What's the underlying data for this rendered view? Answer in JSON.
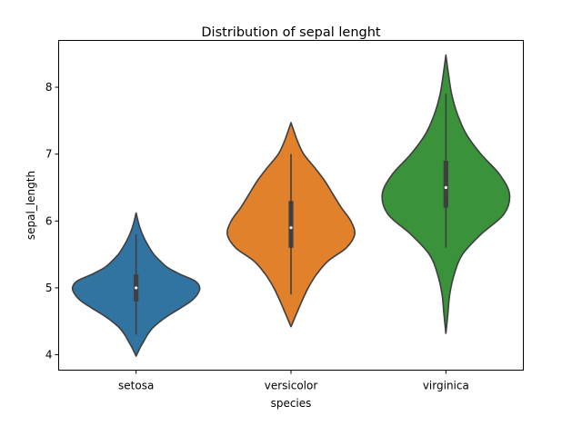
{
  "chart_data": {
    "type": "violin",
    "title": "Distribution of sepal lenght",
    "xlabel": "species",
    "ylabel": "sepal_length",
    "ylim": [
      3.77,
      8.7
    ],
    "yticks": [
      4,
      5,
      6,
      7,
      8
    ],
    "categories": [
      "setosa",
      "versicolor",
      "virginica"
    ],
    "grid": false,
    "legend": "none",
    "series": [
      {
        "category": "setosa",
        "color": "#3274a1",
        "min": 4.3,
        "q1": 4.8,
        "median": 5.0,
        "q3": 5.2,
        "max": 5.8,
        "kde_range": [
          3.98,
          6.12
        ],
        "density": [
          [
            3.98,
            0.0
          ],
          [
            4.1,
            0.06
          ],
          [
            4.2,
            0.12
          ],
          [
            4.3,
            0.18
          ],
          [
            4.4,
            0.26
          ],
          [
            4.5,
            0.38
          ],
          [
            4.6,
            0.53
          ],
          [
            4.7,
            0.7
          ],
          [
            4.8,
            0.86
          ],
          [
            4.9,
            0.96
          ],
          [
            5.0,
            1.0
          ],
          [
            5.1,
            0.93
          ],
          [
            5.2,
            0.7
          ],
          [
            5.3,
            0.5
          ],
          [
            5.4,
            0.38
          ],
          [
            5.5,
            0.28
          ],
          [
            5.6,
            0.21
          ],
          [
            5.7,
            0.15
          ],
          [
            5.8,
            0.1
          ],
          [
            5.9,
            0.06
          ],
          [
            6.0,
            0.03
          ],
          [
            6.12,
            0.0
          ]
        ]
      },
      {
        "category": "versicolor",
        "color": "#e1812c",
        "min": 4.9,
        "q1": 5.6,
        "median": 5.9,
        "q3": 6.3,
        "max": 7.0,
        "kde_range": [
          4.42,
          7.47
        ],
        "density": [
          [
            4.42,
            0.0
          ],
          [
            4.6,
            0.08
          ],
          [
            4.8,
            0.17
          ],
          [
            5.0,
            0.27
          ],
          [
            5.2,
            0.4
          ],
          [
            5.4,
            0.58
          ],
          [
            5.6,
            0.87
          ],
          [
            5.8,
            1.0
          ],
          [
            6.0,
            0.94
          ],
          [
            6.2,
            0.79
          ],
          [
            6.4,
            0.66
          ],
          [
            6.6,
            0.53
          ],
          [
            6.8,
            0.37
          ],
          [
            7.0,
            0.2
          ],
          [
            7.2,
            0.1
          ],
          [
            7.47,
            0.0
          ]
        ]
      },
      {
        "category": "virginica",
        "color": "#3a923a",
        "min": 5.6,
        "q1": 6.2,
        "median": 6.5,
        "q3": 6.9,
        "max": 7.9,
        "kde_range": [
          4.32,
          8.48
        ],
        "density": [
          [
            4.32,
            0.0
          ],
          [
            4.6,
            0.03
          ],
          [
            4.9,
            0.06
          ],
          [
            5.2,
            0.13
          ],
          [
            5.5,
            0.26
          ],
          [
            5.8,
            0.55
          ],
          [
            6.1,
            0.91
          ],
          [
            6.4,
            1.0
          ],
          [
            6.7,
            0.84
          ],
          [
            7.0,
            0.55
          ],
          [
            7.3,
            0.32
          ],
          [
            7.6,
            0.18
          ],
          [
            7.9,
            0.09
          ],
          [
            8.2,
            0.04
          ],
          [
            8.48,
            0.0
          ]
        ]
      }
    ]
  }
}
